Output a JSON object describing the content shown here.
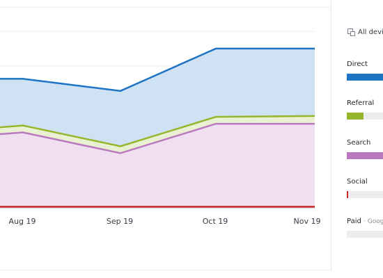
{
  "chart_data": {
    "type": "area",
    "categories": [
      "",
      "Aug 19",
      "Sep 19",
      "Oct 19",
      "Nov 19"
    ],
    "series": [
      {
        "name": "Paid",
        "color": "#e3e3e3",
        "values": [
          1,
          1,
          1,
          1,
          1
        ]
      },
      {
        "name": "Social",
        "color": "#c62828",
        "values": [
          1,
          1,
          1,
          1,
          1
        ]
      },
      {
        "name": "Search",
        "color": "#b979be",
        "values": [
          84,
          86,
          62,
          96,
          96
        ]
      },
      {
        "name": "Referral",
        "color": "#95b52a",
        "values": [
          8,
          8,
          8,
          8,
          9
        ]
      },
      {
        "name": "Direct",
        "color": "#1c74c3",
        "values": [
          56,
          54,
          64,
          79,
          78
        ]
      }
    ],
    "ylim": [
      0,
      205
    ],
    "grid": true
  },
  "sidebar": {
    "devices_label": "All devices",
    "device_icon": "devices-icon",
    "items": [
      {
        "label": "Direct",
        "sub": "",
        "fill": 0.7,
        "color": "#1c74c3"
      },
      {
        "label": "Referral",
        "sub": "",
        "fill": 0.3,
        "color": "#95b52a"
      },
      {
        "label": "Search",
        "sub": "",
        "fill": 0.65,
        "color": "#b979be"
      },
      {
        "label": "Social",
        "sub": "",
        "fill": 0.03,
        "color": "#c62828"
      },
      {
        "label": "Paid",
        "sub": "Google",
        "fill": 0.0,
        "color": "#cccccc"
      }
    ]
  }
}
